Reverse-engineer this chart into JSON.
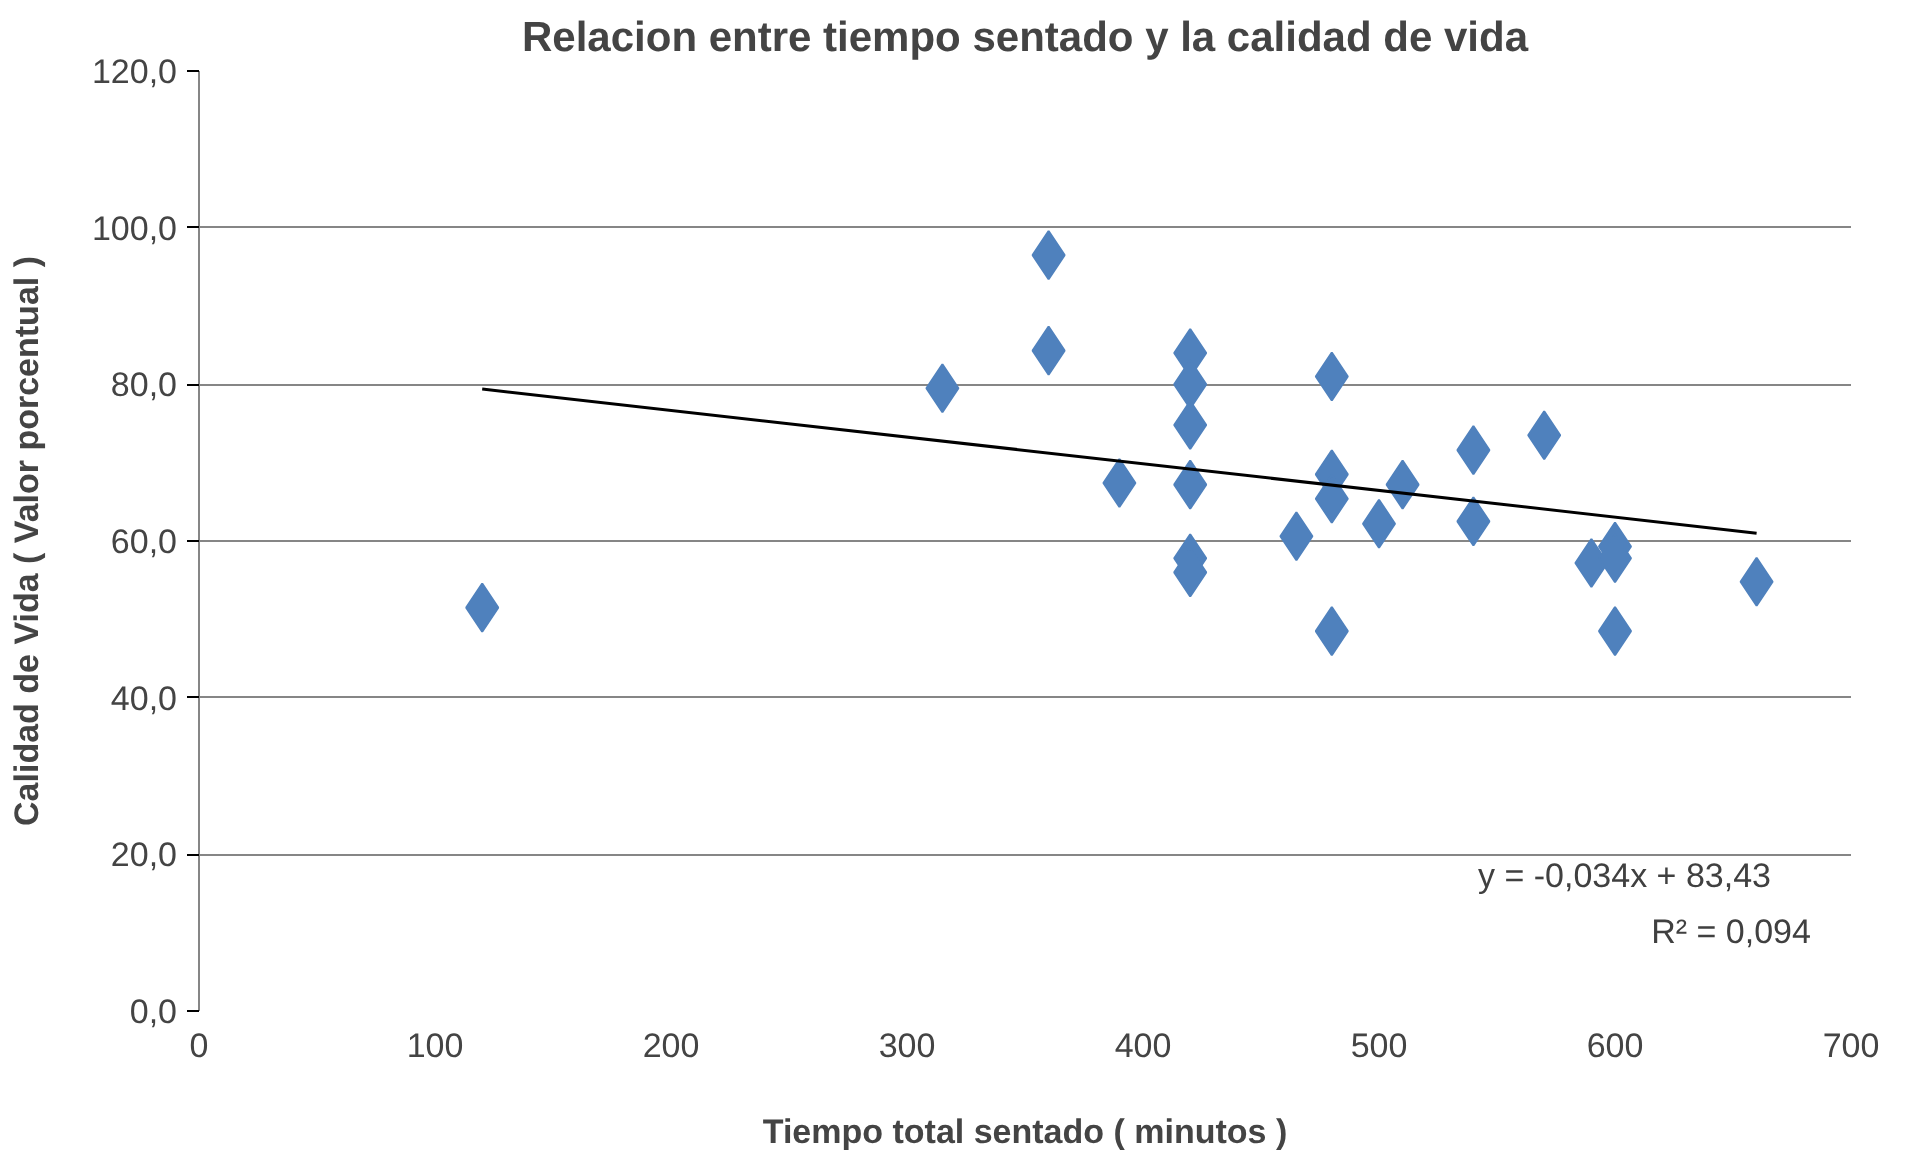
{
  "chart_data": {
    "type": "scatter",
    "title": "Relacion entre tiempo sentado y la calidad de vida",
    "xlabel": "Tiempo total sentado ( minutos )",
    "ylabel": "Calidad de Vida ( Valor porcentual )",
    "grid": "y",
    "xlim": [
      0,
      700
    ],
    "xticks": [
      0,
      100,
      200,
      300,
      400,
      500,
      600,
      700
    ],
    "ylim": [
      0,
      120
    ],
    "yticks": [
      {
        "value": 0,
        "label": "0,0"
      },
      {
        "value": 20,
        "label": "20,0"
      },
      {
        "value": 40,
        "label": "40,0"
      },
      {
        "value": 60,
        "label": "60,0"
      },
      {
        "value": 80,
        "label": "80,0"
      },
      {
        "value": 100,
        "label": "100,0"
      },
      {
        "value": 120,
        "label": "120,0"
      }
    ],
    "series": [
      {
        "marker": "diamond",
        "color": "#4f81bd",
        "x": [
          120,
          315,
          360,
          360,
          390,
          420,
          420,
          420,
          420,
          420,
          420,
          465,
          480,
          480,
          480,
          480,
          500,
          510,
          540,
          540,
          570,
          590,
          600,
          600,
          600,
          660
        ],
        "values": [
          51.5,
          79.5,
          96.5,
          84.3,
          67.4,
          84,
          80,
          74.8,
          67.2,
          57.8,
          56,
          60.6,
          81,
          68.5,
          65.4,
          48.5,
          62.2,
          67.2,
          71.6,
          62.5,
          73.5,
          57.2,
          59.3,
          57.8,
          48.5,
          54.8
        ]
      },
      {
        "type": "line",
        "color": "#000000",
        "x": [
          120,
          660
        ],
        "values": [
          79.4,
          61.0
        ]
      }
    ],
    "annotations": [
      "y = -0,034x + 83,43",
      "R² = 0,094"
    ]
  }
}
